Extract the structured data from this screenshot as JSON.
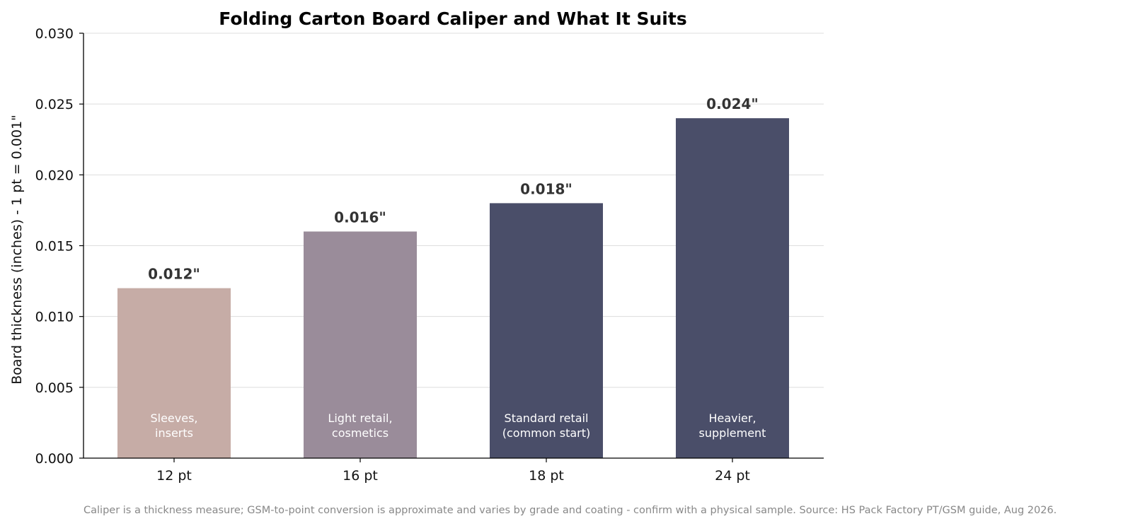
{
  "chart_data": {
    "type": "bar",
    "title": "Folding Carton Board Caliper and What It Suits",
    "xlabel": "",
    "ylabel": "Board thickness (inches)  -  1 pt = 0.001\"",
    "ylim": [
      0,
      0.03
    ],
    "yticks": [
      "0.000",
      "0.005",
      "0.010",
      "0.015",
      "0.020",
      "0.025",
      "0.030"
    ],
    "grid": "horizontal",
    "categories": [
      "12 pt",
      "16 pt",
      "18 pt",
      "24 pt"
    ],
    "values": [
      0.012,
      0.016,
      0.018,
      0.024
    ],
    "value_labels": [
      "0.012\"",
      "0.016\"",
      "0.018\"",
      "0.024\""
    ],
    "bar_annotations": [
      [
        "Sleeves,",
        "inserts"
      ],
      [
        "Light retail,",
        "cosmetics"
      ],
      [
        "Standard retail",
        "(common start)"
      ],
      [
        "Heavier,",
        "supplement"
      ]
    ],
    "colors": [
      "#c6aca6",
      "#9a8c9a",
      "#4a4e69",
      "#4a4e69"
    ],
    "footnote": "Caliper is a thickness measure; GSM-to-point conversion is approximate and varies by grade and coating - confirm with a physical sample. Source: HS Pack Factory PT/GSM guide, Aug 2026."
  }
}
